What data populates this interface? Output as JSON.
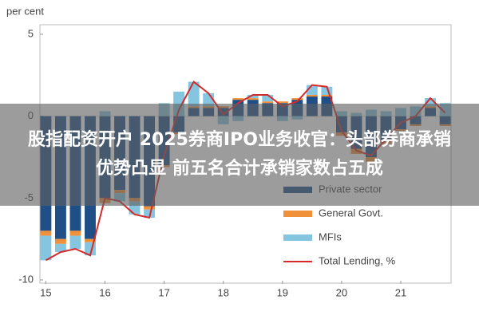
{
  "chart_data": {
    "type": "bar",
    "y_label": "per cent",
    "x": [
      15,
      15.25,
      15.5,
      15.75,
      16,
      16.25,
      16.5,
      16.75,
      17,
      17.25,
      17.5,
      17.75,
      18,
      18.25,
      18.5,
      18.75,
      19,
      19.25,
      19.5,
      19.75,
      20,
      20.25,
      20.5,
      20.75,
      21,
      21.25,
      21.5,
      21.75
    ],
    "xlim": [
      14.9,
      21.85
    ],
    "xticks": [
      15,
      16,
      17,
      18,
      19,
      20,
      21
    ],
    "ylim": [
      -10,
      5
    ],
    "yticks": [
      5,
      0,
      -5,
      -10
    ],
    "grid": false,
    "legend": "lower right",
    "series": [
      {
        "name": "Private sector",
        "type": "bar",
        "color": "#1f4f86",
        "values": [
          -7,
          -7.5,
          -7,
          -7.5,
          -5,
          -4.5,
          -5,
          -5.5,
          -3,
          -1,
          0.5,
          0.5,
          0.5,
          1,
          1,
          0.8,
          0.8,
          1,
          1.2,
          1.2,
          -1,
          -2,
          -2.5,
          -1.5,
          -0.8,
          -0.5,
          0.5,
          -0.5
        ]
      },
      {
        "name": "General Govt.",
        "type": "bar",
        "color": "#f0913a",
        "values": [
          -0.3,
          -0.3,
          -0.3,
          -0.2,
          -0.3,
          -0.2,
          -0.2,
          -0.2,
          -0.1,
          -0.1,
          0.1,
          0.1,
          0.1,
          0.1,
          0.1,
          0.1,
          0.1,
          0.1,
          0.1,
          0.1,
          -0.2,
          -0.3,
          -0.3,
          -0.2,
          -0.1,
          -0.1,
          0.1,
          -0.1
        ]
      },
      {
        "name": "MFIs",
        "type": "bar",
        "color": "#86c5df",
        "values": [
          -1.5,
          -0.5,
          -0.8,
          -0.8,
          0.3,
          -0.5,
          -0.8,
          -0.5,
          0.8,
          1.5,
          1.5,
          0.8,
          -0.5,
          -0.3,
          0.2,
          0.4,
          -0.3,
          -0.2,
          0.6,
          0.5,
          0.3,
          0.2,
          0.4,
          0.3,
          0.5,
          0.6,
          0.5,
          0.8
        ]
      },
      {
        "name": "Total Lending, %",
        "type": "line",
        "color": "#d42a2a",
        "values": [
          -8.8,
          -8.3,
          -8.1,
          -8.5,
          -5,
          -5.2,
          -6,
          -6.2,
          -2.4,
          0.4,
          2.1,
          1.4,
          0.1,
          0.8,
          1.3,
          1.3,
          0.6,
          0.9,
          1.9,
          1.8,
          -0.9,
          -2.1,
          -2.4,
          -1.4,
          -0.4,
          0,
          1.1,
          0.2
        ]
      }
    ]
  },
  "banner": {
    "title": "股指配资开户 2025券商IPO业务收官：头部券商承销优势凸显 前五名合计承销家数占五成"
  }
}
